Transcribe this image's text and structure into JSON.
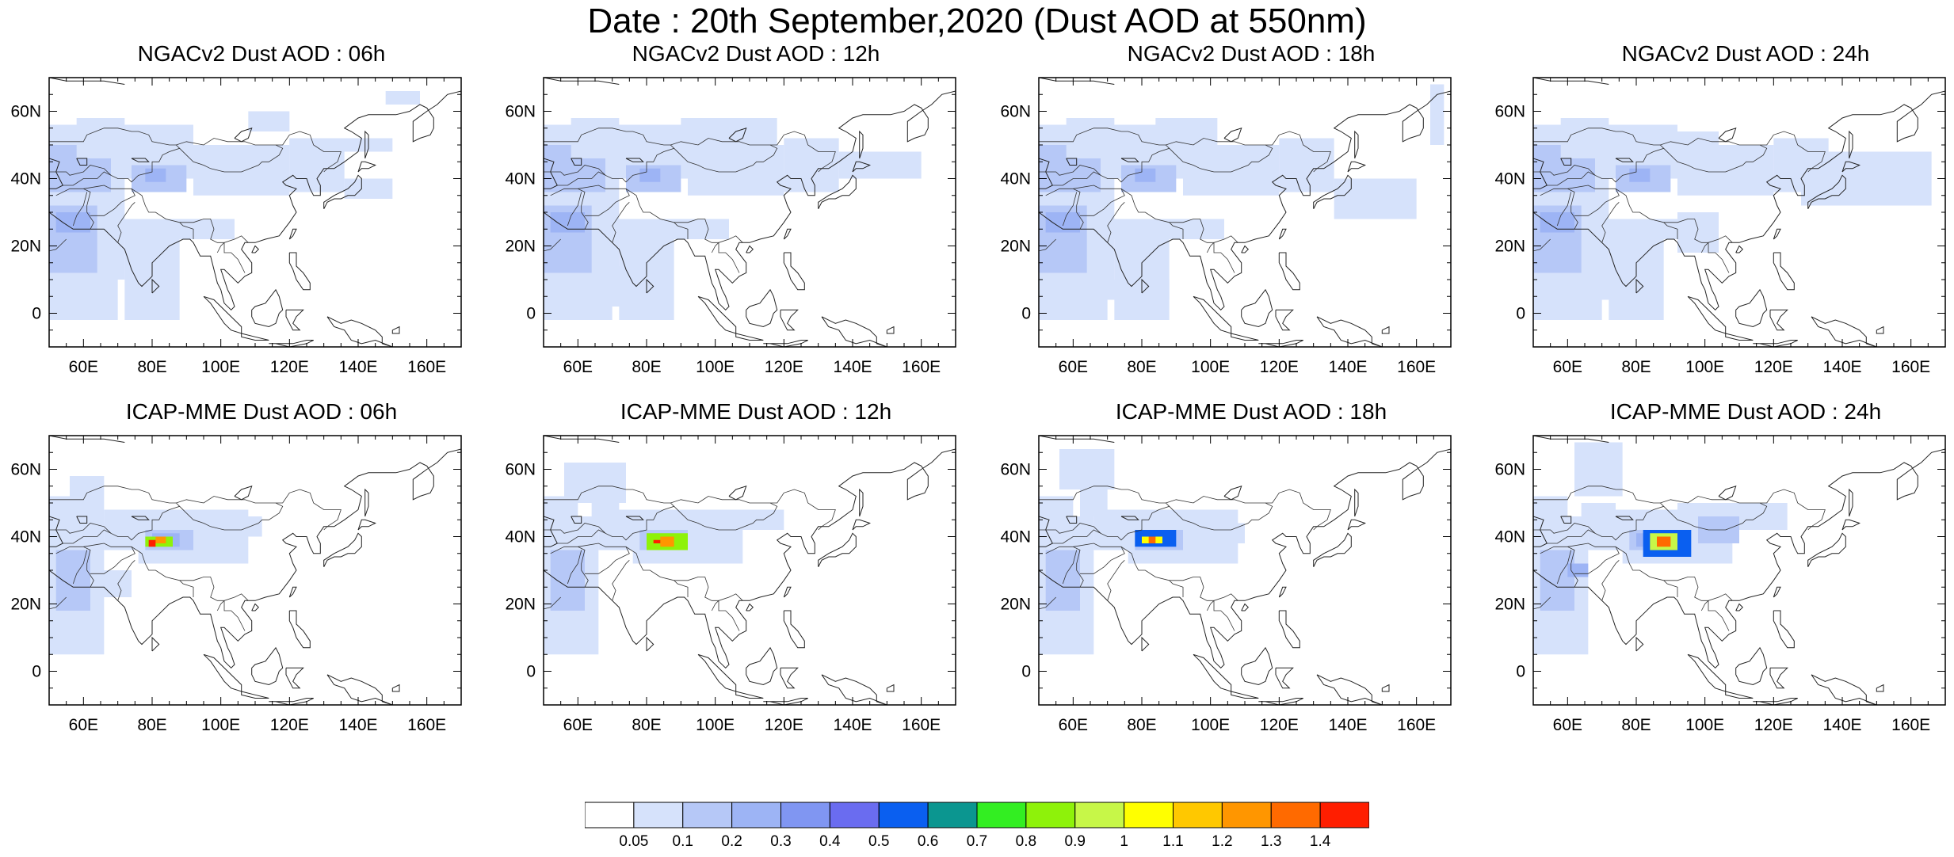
{
  "figure": {
    "title": "Date : 20th September,2020 (Dust AOD at 550nm)"
  },
  "axes": {
    "lon_ticks": [
      "60E",
      "80E",
      "100E",
      "120E",
      "140E",
      "160E"
    ],
    "lat_ticks": [
      "60N",
      "40N",
      "20N",
      "0"
    ],
    "lon_range": [
      50,
      170
    ],
    "lat_range": [
      -10,
      70
    ]
  },
  "panels": [
    {
      "title": "NGACv2 Dust AOD : 06h",
      "model": "NGACv2",
      "hour": "06h"
    },
    {
      "title": "NGACv2 Dust AOD : 12h",
      "model": "NGACv2",
      "hour": "12h"
    },
    {
      "title": "NGACv2 Dust AOD : 18h",
      "model": "NGACv2",
      "hour": "18h"
    },
    {
      "title": "NGACv2 Dust AOD : 24h",
      "model": "NGACv2",
      "hour": "24h"
    },
    {
      "title": "ICAP-MME Dust AOD : 06h",
      "model": "ICAP-MME",
      "hour": "06h"
    },
    {
      "title": "ICAP-MME Dust AOD : 12h",
      "model": "ICAP-MME",
      "hour": "12h"
    },
    {
      "title": "ICAP-MME Dust AOD : 18h",
      "model": "ICAP-MME",
      "hour": "18h"
    },
    {
      "title": "ICAP-MME Dust AOD : 24h",
      "model": "ICAP-MME",
      "hour": "24h"
    }
  ],
  "colorbar": {
    "labels": [
      "0.05",
      "0.1",
      "0.2",
      "0.3",
      "0.4",
      "0.5",
      "0.6",
      "0.7",
      "0.8",
      "0.9",
      "1",
      "1.1",
      "1.2",
      "1.3",
      "1.4"
    ],
    "colors": [
      "#ffffff",
      "#d6e2fb",
      "#b6c8f7",
      "#9db4f5",
      "#8096f2",
      "#6a6cf0",
      "#0a5ff0",
      "#0b9690",
      "#33ee22",
      "#8ef20a",
      "#c7f748",
      "#ffff00",
      "#ffc800",
      "#ff9600",
      "#ff6a00",
      "#ff1e00"
    ]
  }
}
